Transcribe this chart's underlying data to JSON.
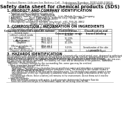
{
  "header_left": "Product Name: Lithium Ion Battery Cell",
  "header_right_line1": "Substance Number: 9990-048-00819",
  "header_right_line2": "Established / Revision: Dec.1.2019",
  "title": "Safety data sheet for chemical products (SDS)",
  "section1_title": "1. PRODUCT AND COMPANY IDENTIFICATION",
  "section1_lines": [
    "  • Product name: Lithium Ion Battery Cell",
    "  • Product code: Cylindrical-type cell",
    "      INR18650J, INR18650L, INR18650A",
    "  • Company name:    Sanyo Electric Co., Ltd., Mobile Energy Company",
    "  • Address:          2001 Kamizukuri, Sumoto-City, Hyogo, Japan",
    "  • Telephone number:  +81-799-26-4111",
    "  • Fax number:  +81-799-26-4129",
    "  • Emergency telephone number (daytime): +81-799-26-3862",
    "                              (Night and holiday): +81-799-26-4131"
  ],
  "section2_title": "2. COMPOSITION / INFORMATION ON INGREDIENTS",
  "section2_intro": "  • Substance or preparation: Preparation",
  "section2_sub": "  • Information about the chemical nature of product:",
  "table_col1_header": "Component/chemical name",
  "table_col2_header": "CAS number",
  "table_col3_header": "Concentration /\nConcentration range",
  "table_col4_header": "Classification and\nhazard labeling",
  "table_col1_sub": "General name",
  "table_rows": [
    [
      "Lithium cobalt oxide\n(LiMnCo1/3O2)",
      "-",
      "30-40%",
      "-"
    ],
    [
      "Iron\n(LiMnCo1/3O2)",
      "7439-89-6",
      "10-20%",
      "-"
    ],
    [
      "Aluminum",
      "7429-90-5",
      "2-5%",
      "-"
    ],
    [
      "Graphite\n(Meso graphite-1)\n(A1-Meso graphite-1)",
      "7782-42-5\n7782-44-7",
      "10-20%",
      "-"
    ],
    [
      "Copper",
      "7440-50-8",
      "5-15%",
      "Sensitization of the skin\ngroup No.2"
    ],
    [
      "Organic electrolyte",
      "-",
      "10-20%",
      "Inflammable liquid"
    ]
  ],
  "section3_title": "3. HAZARDS IDENTIFICATION",
  "section3_para1": [
    "For the battery cell, chemical materials are stored in a hermetically sealed metal case, designed to withstand",
    "temperatures and vibrations-shocks occurring during normal use. As a result, during normal use, there is no",
    "physical danger of ignition or explosion and thermal-changes of hazardous materials leakage.",
    "  However, if exposed to a fire added mechanical shocks, decompresses, whilst electric energy dry mis-use,",
    "the gas inside cannot be operated. The battery cell case will be breached of fire-patterns. hazardous",
    "materials may be released.",
    "  Moreover, if heated strongly by the surrounding fire, some gas may be emitted."
  ],
  "section3_sub1": "  • Most important hazard and effects:",
  "section3_human": "      Human health effects:",
  "section3_human_lines": [
    "        Inhalation: The steam of the electrolyte has an anesthesia action and stimulates a respiratory tract.",
    "        Skin contact: The steam of the electrolyte stimulates a skin. The electrolyte skin contact causes a",
    "        sore and stimulation on the skin.",
    "        Eye contact: The steam of the electrolyte stimulates eyes. The electrolyte eye contact causes a sore",
    "        and stimulation on the eye. Especially, a substance that causes a strong inflammation of the eye is",
    "        contained.",
    "      Environmental effects: Since a battery cell remains in the environment, do not throw out it into the",
    "        environment."
  ],
  "section3_sub2": "  • Specific hazards:",
  "section3_specific": [
    "      If the electrolyte contacts with water, it will generate detrimental hydrogen fluoride.",
    "      Since the used electrolyte is inflammable liquid, do not bring close to fire."
  ],
  "bg_color": "#ffffff",
  "text_color": "#111111",
  "header_font_size": 2.8,
  "title_font_size": 4.8,
  "section_title_font_size": 3.5,
  "body_font_size": 2.5,
  "table_font_size": 2.4
}
